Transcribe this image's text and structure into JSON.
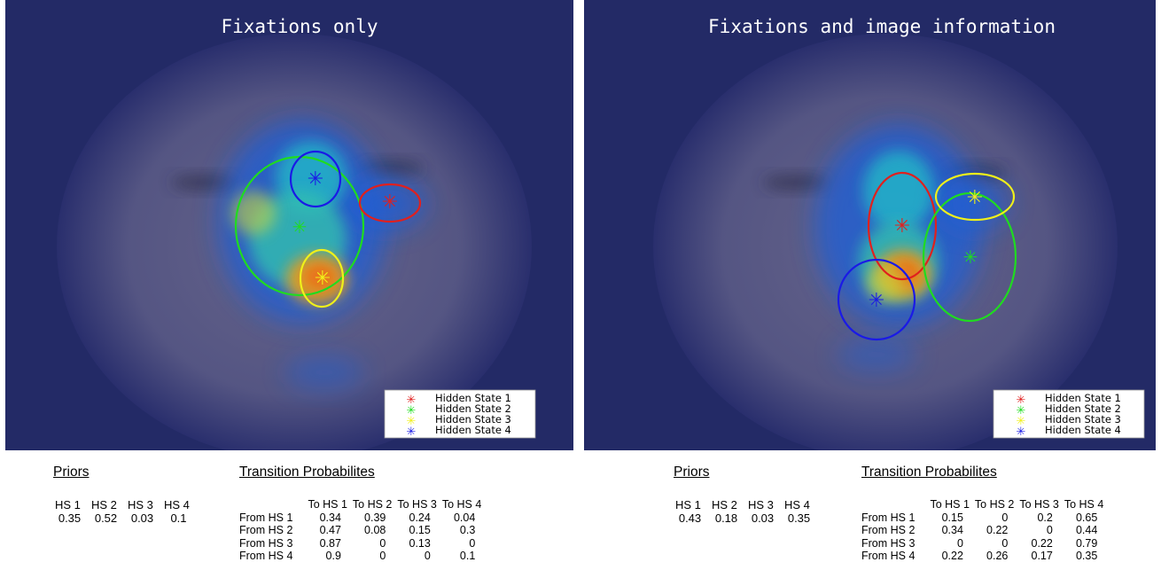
{
  "panels": [
    {
      "title": "Fixations only",
      "legend": [
        "Hidden State 1",
        "Hidden State 2",
        "Hidden State 3",
        "Hidden State 4"
      ],
      "state_colors": [
        "#e0201e",
        "#1fdc1f",
        "#f0f01a",
        "#1a1ae6"
      ]
    },
    {
      "title": "Fixations and image information",
      "legend": [
        "Hidden State 1",
        "Hidden State 2",
        "Hidden State 3",
        "Hidden State 4"
      ],
      "state_colors": [
        "#e0201e",
        "#1fdc1f",
        "#f0f01a",
        "#1a1ae6"
      ]
    }
  ],
  "tables": [
    {
      "priors_title": "Priors",
      "priors_headers": [
        "HS 1",
        "HS 2",
        "HS 3",
        "HS 4"
      ],
      "priors_values": [
        "0.35",
        "0.52",
        "0.03",
        "0.1"
      ],
      "transition_title": "Transition Probabilites",
      "col_headers": [
        "To HS 1",
        "To HS 2",
        "To HS 3",
        "To HS 4"
      ],
      "rows": [
        {
          "label": "From HS 1",
          "values": [
            "0.34",
            "0.39",
            "0.24",
            "0.04"
          ]
        },
        {
          "label": "From HS 2",
          "values": [
            "0.47",
            "0.08",
            "0.15",
            "0.3"
          ]
        },
        {
          "label": "From HS 3",
          "values": [
            "0.87",
            "0",
            "0.13",
            "0"
          ]
        },
        {
          "label": "From HS 4",
          "values": [
            "0.9",
            "0",
            "0",
            "0.1"
          ]
        }
      ]
    },
    {
      "priors_title": "Priors",
      "priors_headers": [
        "HS 1",
        "HS 2",
        "HS 3",
        "HS 4"
      ],
      "priors_values": [
        "0.43",
        "0.18",
        "0.03",
        "0.35"
      ],
      "transition_title": "Transition Probabilites",
      "col_headers": [
        "To HS 1",
        "To HS 2",
        "To HS 3",
        "To HS 4"
      ],
      "rows": [
        {
          "label": "From HS 1",
          "values": [
            "0.15",
            "0",
            "0.2",
            "0.65"
          ]
        },
        {
          "label": "From HS 2",
          "values": [
            "0.34",
            "0.22",
            "0",
            "0.44"
          ]
        },
        {
          "label": "From HS 3",
          "values": [
            "0",
            "0",
            "0.22",
            "0.79"
          ]
        },
        {
          "label": "From HS 4",
          "values": [
            "0.22",
            "0.26",
            "0.17",
            "0.35"
          ]
        }
      ]
    }
  ]
}
